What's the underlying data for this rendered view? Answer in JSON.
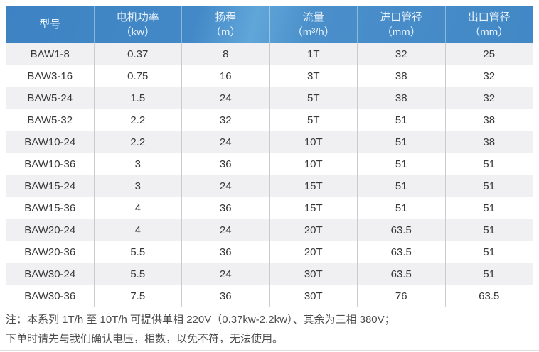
{
  "table": {
    "columns": [
      {
        "label": "型号",
        "unit": ""
      },
      {
        "label": "电机功率",
        "unit": "（kw）"
      },
      {
        "label": "扬程",
        "unit": "（m）"
      },
      {
        "label": "流量",
        "unit": "（m³/h）"
      },
      {
        "label": "进口管径",
        "unit": "（mm）"
      },
      {
        "label": "出口管径",
        "unit": "（mm）"
      }
    ],
    "rows": [
      [
        "BAW1-8",
        "0.37",
        "8",
        "1T",
        "32",
        "25"
      ],
      [
        "BAW3-16",
        "0.75",
        "16",
        "3T",
        "38",
        "32"
      ],
      [
        "BAW5-24",
        "1.5",
        "24",
        "5T",
        "38",
        "32"
      ],
      [
        "BAW5-32",
        "2.2",
        "32",
        "5T",
        "51",
        "38"
      ],
      [
        "BAW10-24",
        "2.2",
        "24",
        "10T",
        "51",
        "38"
      ],
      [
        "BAW10-36",
        "3",
        "36",
        "10T",
        "51",
        "51"
      ],
      [
        "BAW15-24",
        "3",
        "24",
        "15T",
        "51",
        "51"
      ],
      [
        "BAW15-36",
        "4",
        "36",
        "15T",
        "51",
        "51"
      ],
      [
        "BAW20-24",
        "4",
        "24",
        "20T",
        "63.5",
        "51"
      ],
      [
        "BAW20-36",
        "5.5",
        "36",
        "20T",
        "63.5",
        "51"
      ],
      [
        "BAW30-24",
        "5.5",
        "24",
        "30T",
        "63.5",
        "51"
      ],
      [
        "BAW30-36",
        "7.5",
        "36",
        "30T",
        "76",
        "63.5"
      ]
    ]
  },
  "note": {
    "line1": "注：本系列 1T/h 至 10T/h 可提供单相 220V（0.37kw-2.2kw）、其余为三相 380V；",
    "line2": "下单时请先与我们确认电压，相数，以免不符，无法使用。"
  },
  "colors": {
    "header_bg": "#4389c7",
    "header_highlight": "#61a6d9",
    "header_text": "#e9f2fb",
    "row_alt_bg": "#f0f0f2",
    "row_bg": "#ffffff",
    "border": "#cbcbcb",
    "cell_text": "#383838",
    "note_text": "#4c4c4c"
  },
  "chart_data": {
    "type": "table",
    "columns": [
      "型号",
      "电机功率（kw）",
      "扬程（m）",
      "流量（m³/h）",
      "进口管径（mm）",
      "出口管径（mm）"
    ],
    "rows": [
      [
        "BAW1-8",
        "0.37",
        "8",
        "1T",
        "32",
        "25"
      ],
      [
        "BAW3-16",
        "0.75",
        "16",
        "3T",
        "38",
        "32"
      ],
      [
        "BAW5-24",
        "1.5",
        "24",
        "5T",
        "38",
        "32"
      ],
      [
        "BAW5-32",
        "2.2",
        "32",
        "5T",
        "51",
        "38"
      ],
      [
        "BAW10-24",
        "2.2",
        "24",
        "10T",
        "51",
        "38"
      ],
      [
        "BAW10-36",
        "3",
        "36",
        "10T",
        "51",
        "51"
      ],
      [
        "BAW15-24",
        "3",
        "24",
        "15T",
        "51",
        "51"
      ],
      [
        "BAW15-36",
        "4",
        "36",
        "15T",
        "51",
        "51"
      ],
      [
        "BAW20-24",
        "4",
        "24",
        "20T",
        "63.5",
        "51"
      ],
      [
        "BAW20-36",
        "5.5",
        "36",
        "20T",
        "63.5",
        "51"
      ],
      [
        "BAW30-24",
        "5.5",
        "24",
        "30T",
        "63.5",
        "51"
      ],
      [
        "BAW30-36",
        "7.5",
        "36",
        "30T",
        "76",
        "63.5"
      ]
    ]
  }
}
